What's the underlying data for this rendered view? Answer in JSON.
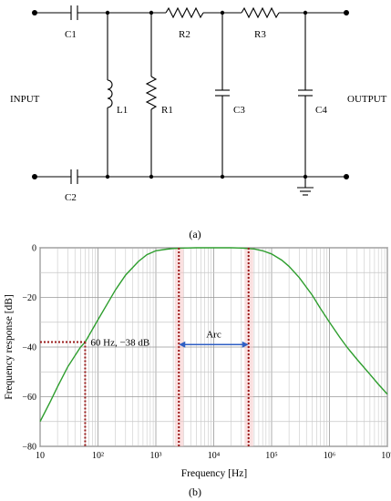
{
  "circuit": {
    "input_label": "INPUT",
    "output_label": "OUTPUT",
    "components": {
      "c1": "C1",
      "c2": "C2",
      "l1": "L1",
      "r1": "R1",
      "r2": "R2",
      "r3": "R3",
      "c3": "C3",
      "c4": "C4"
    },
    "caption": "(a)"
  },
  "chart_data": {
    "type": "line",
    "xscale": "log",
    "xlim": [
      10,
      10000000
    ],
    "ylim": [
      -80,
      0
    ],
    "xlabel": "Frequency [Hz]",
    "ylabel": "Frequency response [dB]",
    "x_ticks": [
      "10",
      "10²",
      "10³",
      "10⁴",
      "10⁵",
      "10⁶",
      "10⁷"
    ],
    "y_ticks": [
      "0",
      "−20",
      "−40",
      "−60",
      "−80"
    ],
    "grid": true,
    "series": [
      {
        "color": "#2e9e2e",
        "x": [
          10,
          15,
          20,
          30,
          50,
          60,
          100,
          150,
          200,
          300,
          500,
          700,
          1000,
          1500,
          2000,
          3000,
          5000,
          10000,
          20000,
          30000,
          50000,
          70000,
          100000,
          150000,
          200000,
          300000,
          500000,
          700000,
          1000000,
          1500000,
          2000000,
          3000000,
          5000000,
          7000000,
          10000000
        ],
        "y": [
          -70,
          -62,
          -56,
          -48,
          -40,
          -38,
          -29,
          -22,
          -17,
          -11,
          -5.5,
          -2.8,
          -1.2,
          -0.6,
          -0.3,
          -0.1,
          0,
          0,
          0,
          -0.1,
          -0.5,
          -1.2,
          -2.5,
          -5,
          -7.5,
          -12,
          -19,
          -24.5,
          -30,
          -36,
          -40,
          -45,
          -51,
          -55,
          -59
        ]
      }
    ],
    "annotations": {
      "point_label": "60 Hz, −38 dB",
      "point": {
        "x": 60,
        "y": -38
      },
      "arc_label": "Arc",
      "arc_range": [
        2500,
        40000
      ]
    },
    "caption": "(b)"
  }
}
